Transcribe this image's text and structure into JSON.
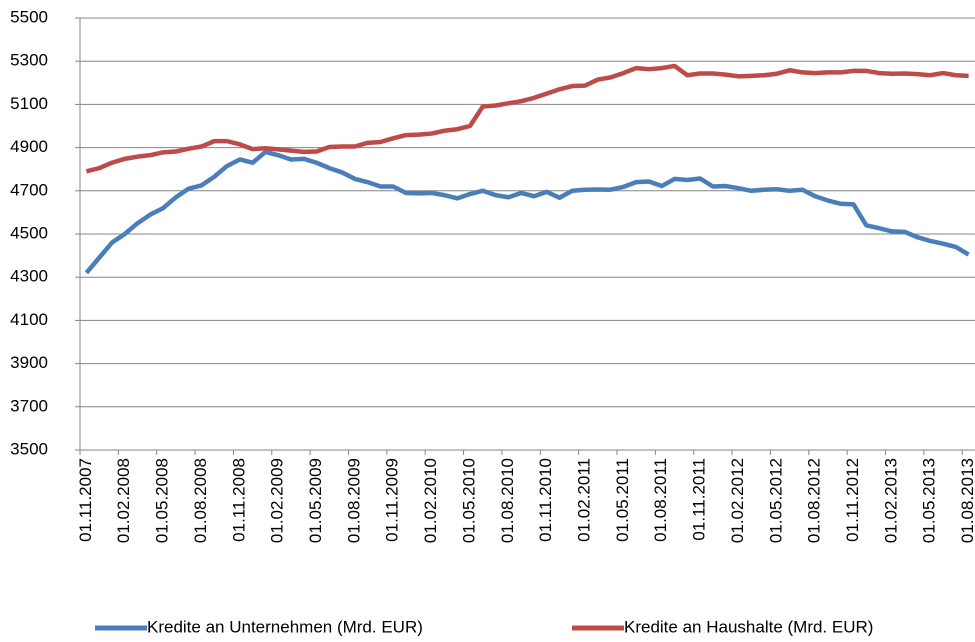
{
  "chart_data": {
    "type": "line",
    "categories": [
      "01.11.2007",
      null,
      null,
      "01.02.2008",
      null,
      null,
      "01.05.2008",
      null,
      null,
      "01.08.2008",
      null,
      null,
      "01.11.2008",
      null,
      null,
      "01.02.2009",
      null,
      null,
      "01.05.2009",
      null,
      null,
      "01.08.2009",
      null,
      null,
      "01.11.2009",
      null,
      null,
      "01.02.2010",
      null,
      null,
      "01.05.2010",
      null,
      null,
      "01.08.2010",
      null,
      null,
      "01.11.2010",
      null,
      null,
      "01.02.2011",
      null,
      null,
      "01.05.2011",
      null,
      null,
      "01.08.2011",
      null,
      null,
      "01.11.2011",
      null,
      null,
      "01.02.2012",
      null,
      null,
      "01.05.2012",
      null,
      null,
      "01.08.2012",
      null,
      null,
      "01.11.2012",
      null,
      null,
      "01.02.2013",
      null,
      null,
      "01.05.2013",
      null,
      null,
      "01.08.2013"
    ],
    "series": [
      {
        "name": "Kredite an Unternehmen (Mrd. EUR)",
        "color": "#4a7ebb",
        "values": [
          4320,
          4390,
          4460,
          4500,
          4550,
          4590,
          4620,
          4670,
          4710,
          4725,
          4765,
          4815,
          4845,
          4830,
          4880,
          4865,
          4845,
          4848,
          4830,
          4805,
          4785,
          4755,
          4740,
          4720,
          4720,
          4690,
          4688,
          4690,
          4680,
          4665,
          4685,
          4700,
          4680,
          4670,
          4690,
          4675,
          4695,
          4668,
          4700,
          4705,
          4706,
          4705,
          4718,
          4740,
          4743,
          4722,
          4755,
          4750,
          4757,
          4720,
          4722,
          4712,
          4700,
          4705,
          4707,
          4700,
          4705,
          4675,
          4655,
          4640,
          4637,
          4540,
          4527,
          4512,
          4510,
          4485,
          4468,
          4455,
          4440,
          4405
        ]
      },
      {
        "name": "Kredite an Haushalte (Mrd. EUR)",
        "color": "#be4b48",
        "values": [
          4790,
          4805,
          4830,
          4848,
          4858,
          4865,
          4878,
          4882,
          4895,
          4905,
          4930,
          4930,
          4915,
          4893,
          4897,
          4892,
          4886,
          4880,
          4882,
          4903,
          4905,
          4905,
          4922,
          4926,
          4943,
          4958,
          4960,
          4965,
          4978,
          4985,
          5000,
          5090,
          5095,
          5105,
          5115,
          5130,
          5150,
          5170,
          5185,
          5187,
          5215,
          5225,
          5245,
          5268,
          5263,
          5268,
          5278,
          5235,
          5243,
          5243,
          5238,
          5230,
          5232,
          5235,
          5242,
          5258,
          5248,
          5245,
          5248,
          5248,
          5255,
          5255,
          5245,
          5242,
          5243,
          5240,
          5235,
          5245,
          5235,
          5232
        ]
      }
    ],
    "ylim": [
      3500,
      5500
    ],
    "yticks": [
      3500,
      3700,
      3900,
      4100,
      4300,
      4500,
      4700,
      4900,
      5100,
      5300,
      5500
    ],
    "grid": true
  }
}
